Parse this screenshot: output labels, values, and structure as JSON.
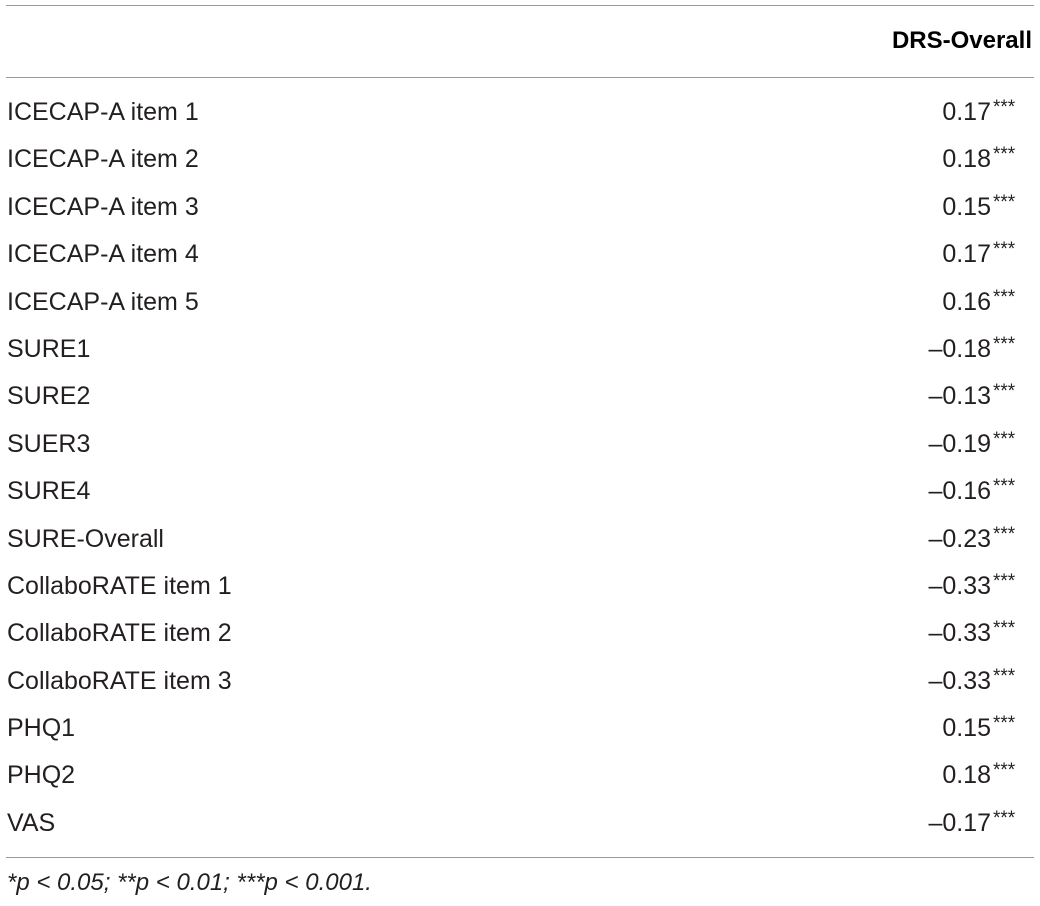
{
  "table": {
    "column_header": "DRS-Overall",
    "rows": [
      {
        "label": "ICECAP-A item 1",
        "value": "0.17",
        "sig": "***"
      },
      {
        "label": "ICECAP-A item 2",
        "value": "0.18",
        "sig": "***"
      },
      {
        "label": "ICECAP-A item 3",
        "value": "0.15",
        "sig": "***"
      },
      {
        "label": "ICECAP-A item 4",
        "value": "0.17",
        "sig": "***"
      },
      {
        "label": "ICECAP-A item 5",
        "value": "0.16",
        "sig": "***"
      },
      {
        "label": "SURE1",
        "value": "–0.18",
        "sig": "***"
      },
      {
        "label": "SURE2",
        "value": "–0.13",
        "sig": "***"
      },
      {
        "label": "SUER3",
        "value": "–0.19",
        "sig": "***"
      },
      {
        "label": "SURE4",
        "value": "–0.16",
        "sig": "***"
      },
      {
        "label": "SURE-Overall",
        "value": "–0.23",
        "sig": "***"
      },
      {
        "label": "CollaboRATE item 1",
        "value": "–0.33",
        "sig": "***"
      },
      {
        "label": "CollaboRATE item 2",
        "value": "–0.33",
        "sig": "***"
      },
      {
        "label": "CollaboRATE item 3",
        "value": "–0.33",
        "sig": "***"
      },
      {
        "label": "PHQ1",
        "value": "0.15",
        "sig": "***"
      },
      {
        "label": "PHQ2",
        "value": "0.18",
        "sig": "***"
      },
      {
        "label": "VAS",
        "value": "–0.17",
        "sig": "***"
      }
    ],
    "footnote": "*p < 0.05; **p < 0.01; ***p < 0.001."
  }
}
